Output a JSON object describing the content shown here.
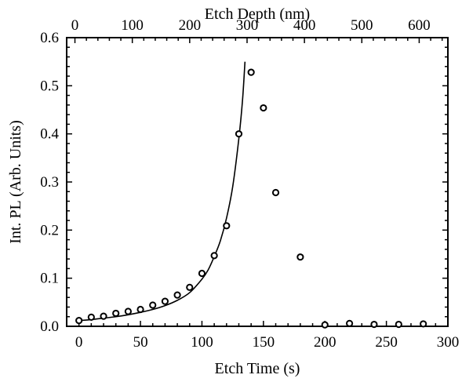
{
  "chart_data": {
    "type": "scatter",
    "xlabel": "Etch Time (s)",
    "ylabel": "Int. PL (Arb. Units)",
    "x2label": "Etch Depth (nm)",
    "xlim": [
      -10,
      300
    ],
    "ylim": [
      0,
      0.6
    ],
    "x2lim": [
      -14.4,
      650
    ],
    "x_ticks": [
      0,
      50,
      100,
      150,
      200,
      250,
      300
    ],
    "y_ticks": [
      0.0,
      0.1,
      0.2,
      0.3,
      0.4,
      0.5,
      0.6
    ],
    "x2_ticks": [
      0,
      100,
      200,
      300,
      400,
      500,
      600
    ],
    "x_tick_labels": [
      "0",
      "50",
      "100",
      "150",
      "200",
      "250",
      "300"
    ],
    "y_tick_labels": [
      "0.0",
      "0.1",
      "0.2",
      "0.3",
      "0.4",
      "0.5",
      "0.6"
    ],
    "x2_tick_labels": [
      "0",
      "100",
      "200",
      "300",
      "400",
      "500",
      "600"
    ],
    "grid": false,
    "series": [
      {
        "kind": "markers",
        "marker": "open-circle",
        "x": [
          0,
          10,
          20,
          30,
          40,
          50,
          60,
          70,
          80,
          90,
          100,
          110,
          120,
          130,
          140,
          150,
          160,
          180,
          200,
          220,
          240,
          260,
          280
        ],
        "y": [
          0.012,
          0.019,
          0.021,
          0.027,
          0.031,
          0.035,
          0.044,
          0.052,
          0.065,
          0.081,
          0.11,
          0.147,
          0.209,
          0.4,
          0.528,
          0.454,
          0.278,
          0.144,
          0.003,
          0.006,
          0.004,
          0.004,
          0.005
        ]
      },
      {
        "kind": "line",
        "x": [
          0,
          10,
          20,
          30,
          40,
          50,
          60,
          70,
          80,
          90,
          100,
          105,
          110,
          115,
          120,
          125,
          130,
          133,
          135
        ],
        "y": [
          0.012,
          0.014,
          0.017,
          0.02,
          0.024,
          0.029,
          0.035,
          0.043,
          0.054,
          0.07,
          0.098,
          0.117,
          0.145,
          0.178,
          0.225,
          0.29,
          0.39,
          0.47,
          0.55
        ]
      }
    ]
  }
}
